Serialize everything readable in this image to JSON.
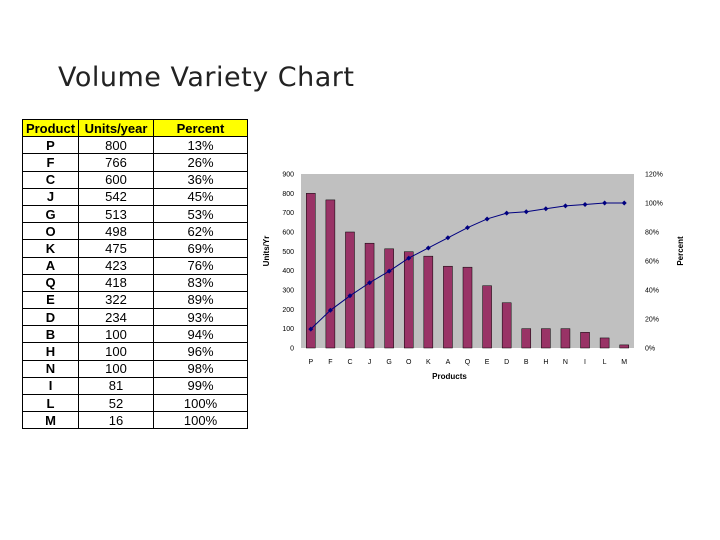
{
  "slide": {
    "title": "Volume Variety Chart"
  },
  "table": {
    "headers": [
      "Product",
      "Units/year",
      "Percent"
    ],
    "rows": [
      [
        "P",
        "800",
        "13%"
      ],
      [
        "F",
        "766",
        "26%"
      ],
      [
        "C",
        "600",
        "36%"
      ],
      [
        "J",
        "542",
        "45%"
      ],
      [
        "G",
        "513",
        "53%"
      ],
      [
        "O",
        "498",
        "62%"
      ],
      [
        "K",
        "475",
        "69%"
      ],
      [
        "A",
        "423",
        "76%"
      ],
      [
        "Q",
        "418",
        "83%"
      ],
      [
        "E",
        "322",
        "89%"
      ],
      [
        "D",
        "234",
        "93%"
      ],
      [
        "B",
        "100",
        "94%"
      ],
      [
        "H",
        "100",
        "96%"
      ],
      [
        "N",
        "100",
        "98%"
      ],
      [
        "I",
        "81",
        "99%"
      ],
      [
        "L",
        "52",
        "100%"
      ],
      [
        "M",
        "16",
        "100%"
      ]
    ]
  },
  "chart_data": {
    "type": "bar",
    "categories": [
      "P",
      "F",
      "C",
      "J",
      "G",
      "O",
      "K",
      "A",
      "Q",
      "E",
      "D",
      "B",
      "H",
      "N",
      "I",
      "L",
      "M"
    ],
    "series": [
      {
        "type": "bar",
        "axis": "left",
        "values": [
          800,
          766,
          600,
          542,
          513,
          498,
          475,
          423,
          418,
          322,
          234,
          100,
          100,
          100,
          81,
          52,
          16
        ],
        "color": "#993366"
      },
      {
        "type": "line",
        "axis": "right",
        "values": [
          13,
          26,
          36,
          45,
          53,
          62,
          69,
          76,
          83,
          89,
          93,
          94,
          96,
          98,
          99,
          100,
          100
        ],
        "color": "#000080"
      }
    ],
    "xlabel": "Products",
    "ylabel": "Units/Yr",
    "y2label": "Percent",
    "ylim": [
      0,
      900
    ],
    "yticks": [
      "0",
      "100",
      "200",
      "300",
      "400",
      "500",
      "600",
      "700",
      "800",
      "900"
    ],
    "y2lim": [
      0,
      120
    ],
    "y2ticks": [
      "0%",
      "20%",
      "40%",
      "60%",
      "80%",
      "100%",
      "120%"
    ],
    "plot_background": "#c0c0c0",
    "grid": false,
    "legend": "none"
  }
}
